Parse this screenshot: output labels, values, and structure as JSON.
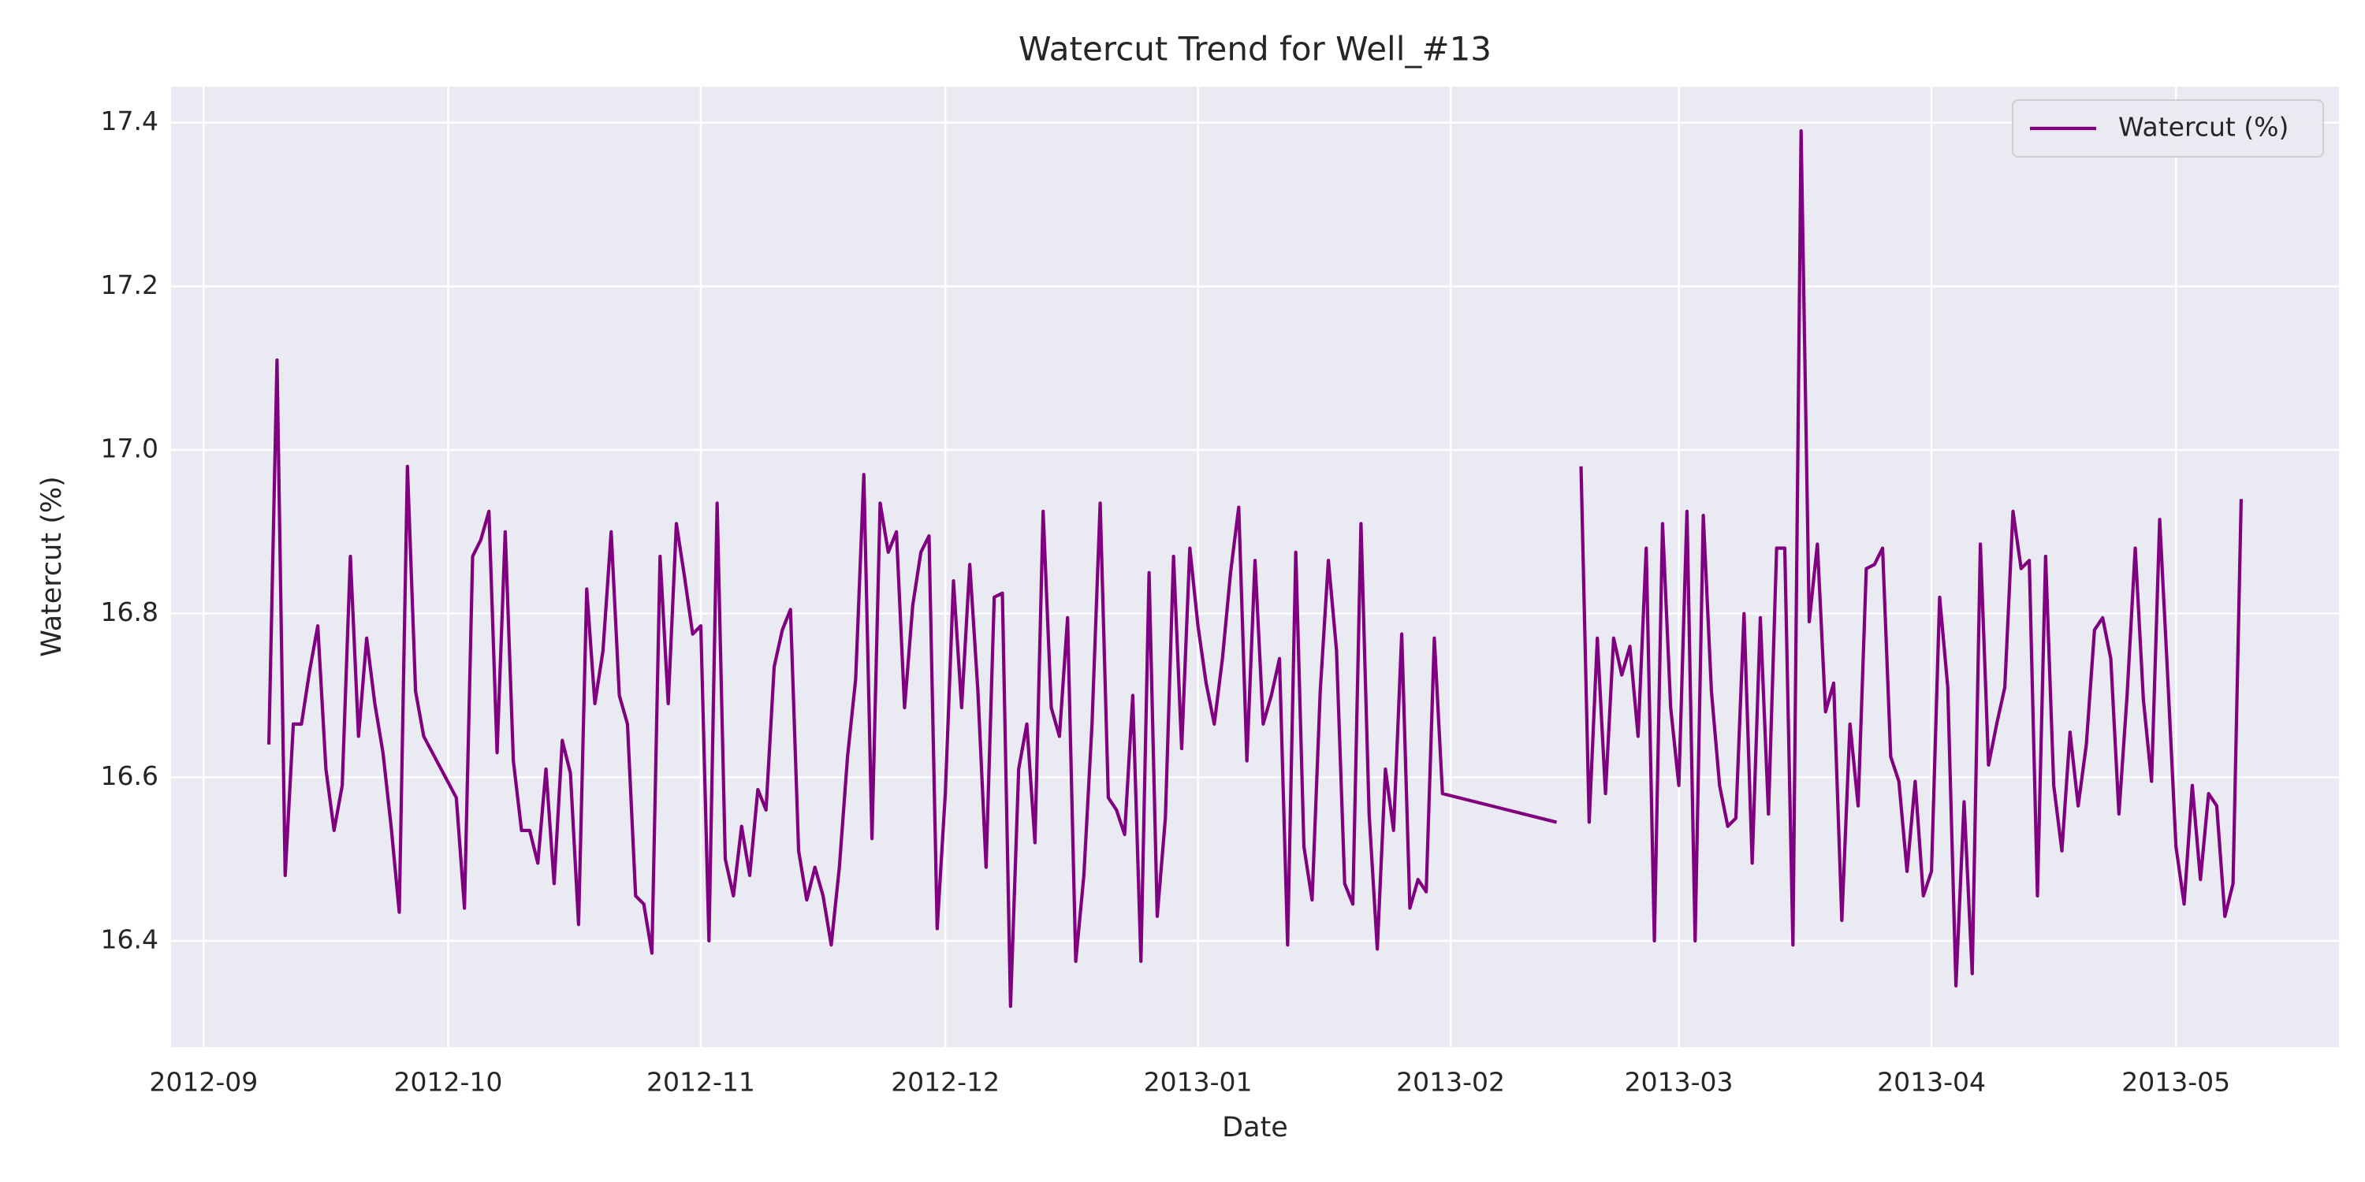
{
  "chart_data": {
    "type": "line",
    "title": "Watercut Trend for Well_#13",
    "xlabel": "Date",
    "ylabel": "Watercut (%)",
    "x": [
      "2012-09-09",
      "2012-09-10",
      "2012-09-11",
      "2012-09-12",
      "2012-09-13",
      "2012-09-14",
      "2012-09-15",
      "2012-09-16",
      "2012-09-17",
      "2012-09-18",
      "2012-09-19",
      "2012-09-20",
      "2012-09-21",
      "2012-09-22",
      "2012-09-23",
      "2012-09-24",
      "2012-09-25",
      "2012-09-26",
      "2012-09-27",
      "2012-09-28",
      "2012-10-02",
      "2012-10-03",
      "2012-10-04",
      "2012-10-05",
      "2012-10-06",
      "2012-10-07",
      "2012-10-08",
      "2012-10-09",
      "2012-10-10",
      "2012-10-11",
      "2012-10-12",
      "2012-10-13",
      "2012-10-14",
      "2012-10-15",
      "2012-10-16",
      "2012-10-17",
      "2012-10-18",
      "2012-10-19",
      "2012-10-20",
      "2012-10-21",
      "2012-10-22",
      "2012-10-23",
      "2012-10-24",
      "2012-10-25",
      "2012-10-26",
      "2012-10-27",
      "2012-10-28",
      "2012-10-29",
      "2012-10-30",
      "2012-10-31",
      "2012-11-01",
      "2012-11-02",
      "2012-11-03",
      "2012-11-04",
      "2012-11-05",
      "2012-11-06",
      "2012-11-07",
      "2012-11-08",
      "2012-11-09",
      "2012-11-10",
      "2012-11-11",
      "2012-11-12",
      "2012-11-13",
      "2012-11-14",
      "2012-11-15",
      "2012-11-16",
      "2012-11-17",
      "2012-11-18",
      "2012-11-19",
      "2012-11-20",
      "2012-11-21",
      "2012-11-22",
      "2012-11-23",
      "2012-11-24",
      "2012-11-25",
      "2012-11-26",
      "2012-11-27",
      "2012-11-28",
      "2012-11-29",
      "2012-11-30",
      "2012-12-01",
      "2012-12-02",
      "2012-12-03",
      "2012-12-04",
      "2012-12-05",
      "2012-12-06",
      "2012-12-07",
      "2012-12-08",
      "2012-12-09",
      "2012-12-10",
      "2012-12-11",
      "2012-12-12",
      "2012-12-13",
      "2012-12-14",
      "2012-12-15",
      "2012-12-16",
      "2012-12-17",
      "2012-12-18",
      "2012-12-19",
      "2012-12-20",
      "2012-12-21",
      "2012-12-22",
      "2012-12-23",
      "2012-12-24",
      "2012-12-25",
      "2012-12-26",
      "2012-12-27",
      "2012-12-28",
      "2012-12-29",
      "2012-12-30",
      "2012-12-31",
      "2013-01-01",
      "2013-01-02",
      "2013-01-03",
      "2013-01-04",
      "2013-01-05",
      "2013-01-06",
      "2013-01-07",
      "2013-01-08",
      "2013-01-09",
      "2013-01-10",
      "2013-01-11",
      "2013-01-12",
      "2013-01-13",
      "2013-01-14",
      "2013-01-15",
      "2013-01-16",
      "2013-01-17",
      "2013-01-18",
      "2013-01-19",
      "2013-01-20",
      "2013-01-21",
      "2013-01-22",
      "2013-01-23",
      "2013-01-24",
      "2013-01-25",
      "2013-01-26",
      "2013-01-27",
      "2013-01-28",
      "2013-01-29",
      "2013-01-30",
      "2013-01-31",
      "2013-02-14",
      "2013-02-15",
      "2013-02-17",
      "2013-02-18",
      "2013-02-19",
      "2013-02-20",
      "2013-02-21",
      "2013-02-22",
      "2013-02-23",
      "2013-02-24",
      "2013-02-25",
      "2013-02-26",
      "2013-02-27",
      "2013-02-28",
      "2013-03-01",
      "2013-03-02",
      "2013-03-03",
      "2013-03-04",
      "2013-03-05",
      "2013-03-06",
      "2013-03-07",
      "2013-03-08",
      "2013-03-09",
      "2013-03-10",
      "2013-03-11",
      "2013-03-12",
      "2013-03-13",
      "2013-03-14",
      "2013-03-15",
      "2013-03-16",
      "2013-03-17",
      "2013-03-18",
      "2013-03-19",
      "2013-03-20",
      "2013-03-21",
      "2013-03-22",
      "2013-03-23",
      "2013-03-24",
      "2013-03-25",
      "2013-03-26",
      "2013-03-27",
      "2013-03-28",
      "2013-03-29",
      "2013-03-30",
      "2013-03-31",
      "2013-04-01",
      "2013-04-02",
      "2013-04-03",
      "2013-04-04",
      "2013-04-05",
      "2013-04-06",
      "2013-04-07",
      "2013-04-08",
      "2013-04-09",
      "2013-04-10",
      "2013-04-11",
      "2013-04-12",
      "2013-04-13",
      "2013-04-14",
      "2013-04-15",
      "2013-04-16",
      "2013-04-17",
      "2013-04-18",
      "2013-04-19",
      "2013-04-20",
      "2013-04-21",
      "2013-04-22",
      "2013-04-23",
      "2013-04-24",
      "2013-04-25",
      "2013-04-26",
      "2013-04-27",
      "2013-04-28",
      "2013-04-29",
      "2013-04-30",
      "2013-05-01",
      "2013-05-02",
      "2013-05-03",
      "2013-05-04",
      "2013-05-05",
      "2013-05-06",
      "2013-05-07",
      "2013-05-08",
      "2013-05-09"
    ],
    "series": [
      {
        "name": "Watercut (%)",
        "color": "#800080",
        "values": [
          16.64,
          17.11,
          16.48,
          16.665,
          16.665,
          16.73,
          16.785,
          16.61,
          16.535,
          16.59,
          16.87,
          16.65,
          16.77,
          16.69,
          16.63,
          16.54,
          16.435,
          16.98,
          16.705,
          16.65,
          16.575,
          16.44,
          16.87,
          16.89,
          16.925,
          16.63,
          16.9,
          16.62,
          16.535,
          16.535,
          16.495,
          16.61,
          16.47,
          16.645,
          16.605,
          16.42,
          16.83,
          16.69,
          16.755,
          16.9,
          16.7,
          16.665,
          16.455,
          16.445,
          16.385,
          16.87,
          16.69,
          16.91,
          16.845,
          16.775,
          16.785,
          16.4,
          16.935,
          16.5,
          16.455,
          16.54,
          16.48,
          16.585,
          16.56,
          16.735,
          16.78,
          16.805,
          16.51,
          16.45,
          16.49,
          16.455,
          16.395,
          16.49,
          16.625,
          16.72,
          16.97,
          16.525,
          16.935,
          16.875,
          16.9,
          16.685,
          16.81,
          16.875,
          16.895,
          16.415,
          16.58,
          16.84,
          16.685,
          16.86,
          16.705,
          16.49,
          16.82,
          16.825,
          16.32,
          16.61,
          16.665,
          16.52,
          16.925,
          16.685,
          16.65,
          16.795,
          16.375,
          16.48,
          16.665,
          16.935,
          16.575,
          16.56,
          16.53,
          16.7,
          16.375,
          16.85,
          16.43,
          16.55,
          16.87,
          16.635,
          16.88,
          16.785,
          16.715,
          16.665,
          16.745,
          16.85,
          16.93,
          16.62,
          16.865,
          16.665,
          16.7,
          16.745,
          16.395,
          16.875,
          16.515,
          16.45,
          16.705,
          16.865,
          16.755,
          16.47,
          16.445,
          16.91,
          16.555,
          16.39,
          16.61,
          16.535,
          16.775,
          16.44,
          16.475,
          16.46,
          16.77,
          16.58,
          16.545,
          null,
          16.98,
          16.545,
          16.77,
          16.58,
          16.77,
          16.725,
          16.76,
          16.65,
          16.88,
          16.4,
          16.91,
          16.685,
          16.59,
          16.925,
          16.4,
          16.92,
          16.705,
          16.59,
          16.54,
          16.55,
          16.8,
          16.495,
          16.795,
          16.555,
          16.88,
          16.88,
          16.395,
          17.39,
          16.79,
          16.885,
          16.68,
          16.715,
          16.425,
          16.665,
          16.565,
          16.855,
          16.86,
          16.88,
          16.625,
          16.595,
          16.485,
          16.595,
          16.455,
          16.485,
          16.82,
          16.71,
          16.345,
          16.57,
          16.36,
          16.885,
          16.615,
          16.665,
          16.71,
          16.925,
          16.855,
          16.865,
          16.455,
          16.87,
          16.59,
          16.51,
          16.655,
          16.565,
          16.64,
          16.78,
          16.795,
          16.745,
          16.555,
          16.7,
          16.88,
          16.695,
          16.595,
          16.915,
          16.72,
          16.515,
          16.445,
          16.59,
          16.475,
          16.58,
          16.565,
          16.43,
          16.47,
          16.94
        ]
      }
    ],
    "xlim": [
      "2012-08-28",
      "2013-05-21"
    ],
    "xticks": [
      {
        "value": "2012-09-01",
        "label": "2012-09"
      },
      {
        "value": "2012-10-01",
        "label": "2012-10"
      },
      {
        "value": "2012-11-01",
        "label": "2012-11"
      },
      {
        "value": "2012-12-01",
        "label": "2012-12"
      },
      {
        "value": "2013-01-01",
        "label": "2013-01"
      },
      {
        "value": "2013-02-01",
        "label": "2013-02"
      },
      {
        "value": "2013-03-01",
        "label": "2013-03"
      },
      {
        "value": "2013-04-01",
        "label": "2013-04"
      },
      {
        "value": "2013-05-01",
        "label": "2013-05"
      }
    ],
    "ylim": [
      16.27,
      17.444
    ],
    "yticks": [
      {
        "value": 16.4,
        "label": "16.4"
      },
      {
        "value": 16.6,
        "label": "16.6"
      },
      {
        "value": 16.8,
        "label": "16.8"
      },
      {
        "value": 17,
        "label": "17.0"
      },
      {
        "value": 17.2,
        "label": "17.2"
      },
      {
        "value": 17.4,
        "label": "17.4"
      }
    ],
    "grid": true,
    "legend": "upper right"
  }
}
